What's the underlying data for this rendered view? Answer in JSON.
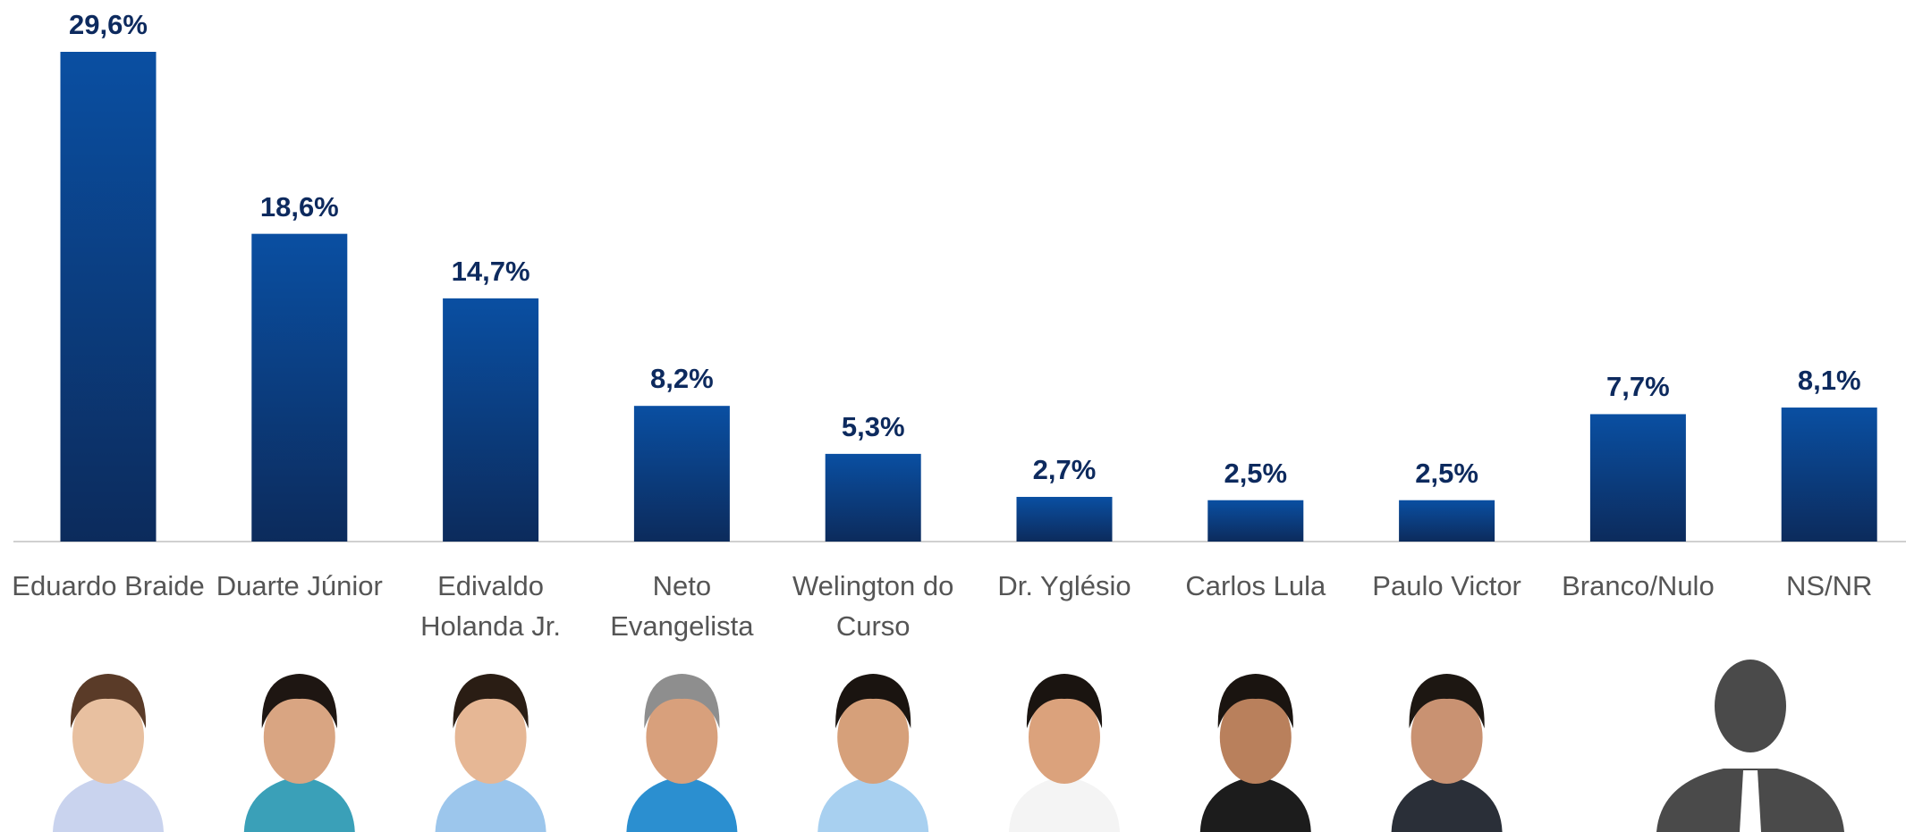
{
  "chart_data": {
    "type": "bar",
    "categories": [
      "Eduardo Braide",
      "Duarte Júnior",
      "Edivaldo Holanda Jr.",
      "Neto Evangelista",
      "Welington do Curso",
      "Dr. Yglésio",
      "Carlos Lula",
      "Paulo Victor",
      "Branco/Nulo",
      "NS/NR"
    ],
    "values": [
      29.6,
      18.6,
      14.7,
      8.2,
      5.3,
      2.7,
      2.5,
      2.5,
      7.7,
      8.1
    ],
    "value_labels": [
      "29,6%",
      "18,6%",
      "14,7%",
      "8,2%",
      "5,3%",
      "2,7%",
      "2,5%",
      "2,5%",
      "7,7%",
      "8,1%"
    ],
    "color": "#0a4c9c"
  }
}
